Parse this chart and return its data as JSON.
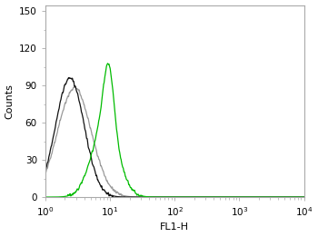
{
  "title": "",
  "xlabel": "FL1-H",
  "ylabel": "Counts",
  "xlim": [
    1.0,
    10000.0
  ],
  "ylim": [
    0,
    155
  ],
  "yticks": [
    0,
    30,
    60,
    90,
    120,
    150
  ],
  "background_color": "#ffffff",
  "frame_color": "#aaaaaa",
  "cells_alone": {
    "color": "#111111",
    "linestyle": "-",
    "linewidth": 0.9,
    "peak_log": 0.38,
    "peak_y": 96,
    "sigma": 0.22
  },
  "isotype": {
    "color": "#999999",
    "linestyle": "-",
    "linewidth": 0.9,
    "peak_log": 0.45,
    "peak_y": 88,
    "sigma": 0.26
  },
  "antibody": {
    "color": "#00bb00",
    "linestyle": "-",
    "linewidth": 0.9,
    "peak_log": 0.92,
    "peak_y": 108,
    "sigma": 0.2,
    "peak2_log": 0.98,
    "peak2_y": 95,
    "sigma2": 0.08
  }
}
